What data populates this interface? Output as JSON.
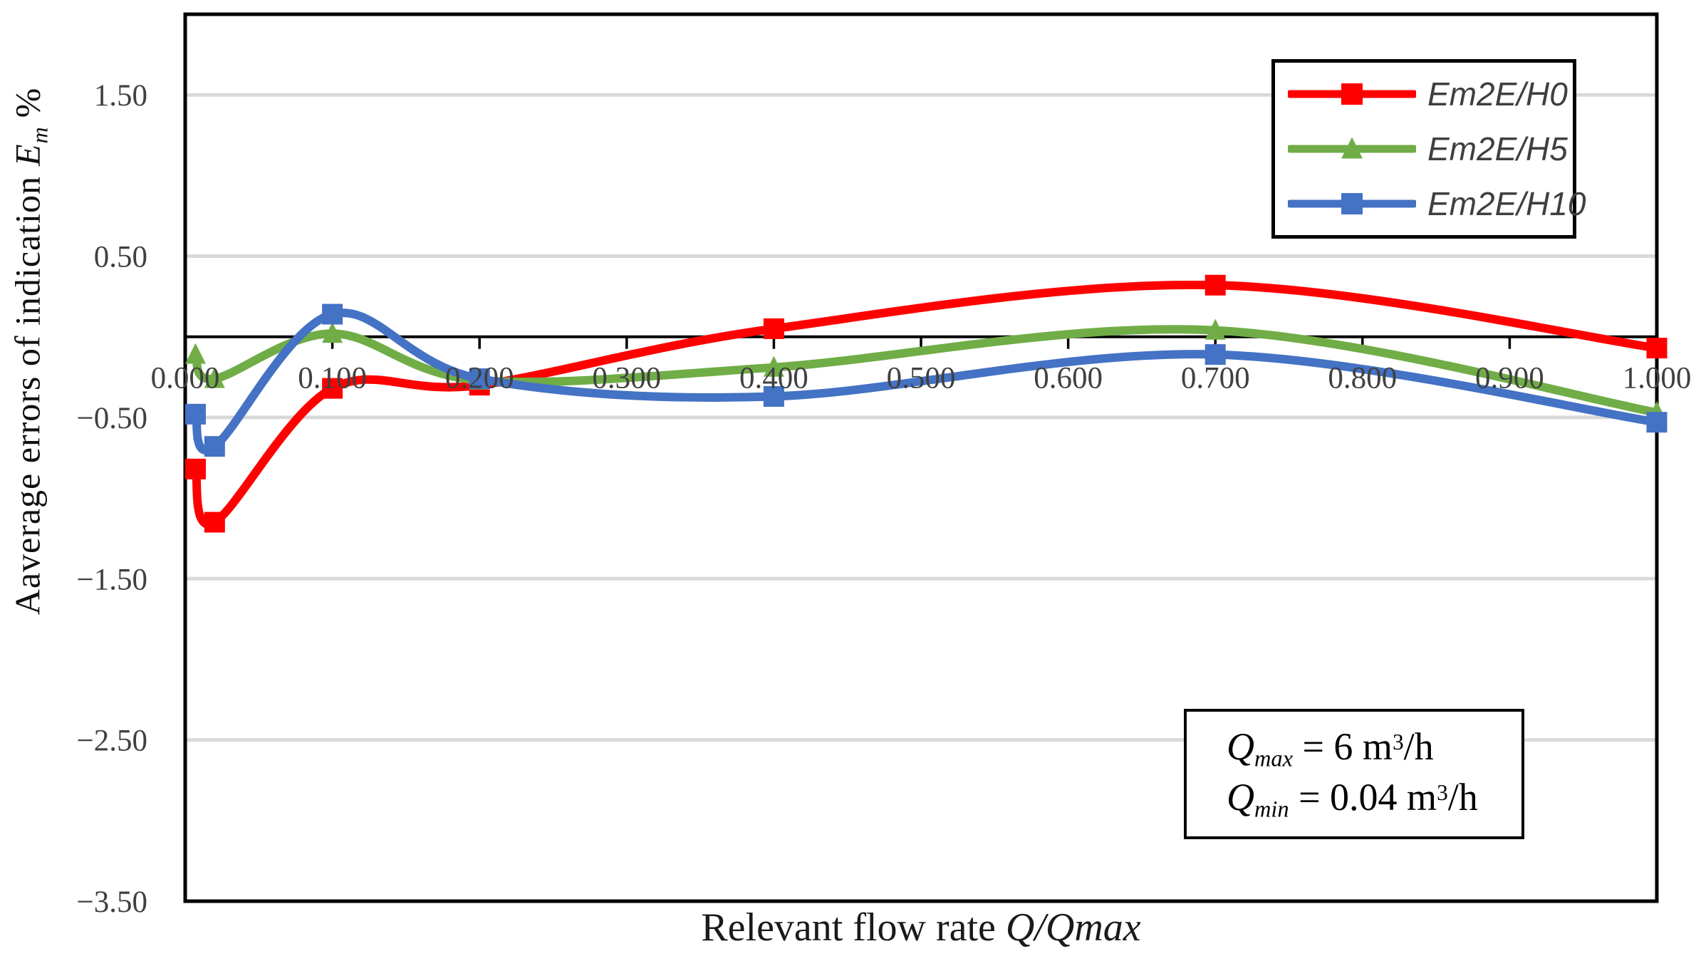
{
  "chart_data": {
    "type": "line",
    "title": "",
    "smooth": true,
    "grid": "horizontal",
    "legend_position": "top-right",
    "xlabel_plain": "Relevant flow rate ",
    "xlabel_italic": "Q/Qmax",
    "ylabel_plain": "Aaverage errors of indication",
    "ylabel_symbol": "E",
    "ylabel_symbol_sub": "m",
    "ylabel_suffix": "%",
    "x": [
      0.007,
      0.02,
      0.1,
      0.2,
      0.4,
      0.7,
      1.0
    ],
    "series": [
      {
        "name": "Em2E/H0",
        "color": "#FF0000",
        "marker": "square",
        "values": [
          -0.82,
          -1.15,
          -0.32,
          -0.3,
          0.05,
          0.32,
          -0.07
        ]
      },
      {
        "name": "Em2E/H5",
        "color": "#70AD47",
        "marker": "triangle",
        "values": [
          -0.11,
          -0.26,
          0.02,
          -0.27,
          -0.19,
          0.04,
          -0.47
        ]
      },
      {
        "name": "Em2E/H10",
        "color": "#4472C4",
        "marker": "square",
        "values": [
          -0.48,
          -0.68,
          0.14,
          -0.26,
          -0.37,
          -0.11,
          -0.53
        ]
      }
    ],
    "xlim": [
      0,
      1
    ],
    "ylim": [
      -3.5,
      2.0
    ],
    "x_ticks": {
      "values": [
        0,
        0.1,
        0.2,
        0.3,
        0.4,
        0.5,
        0.6,
        0.7,
        0.8,
        0.9,
        1.0
      ],
      "labels": [
        "0.000",
        "0.100",
        "0.200",
        "0.300",
        "0.400",
        "0.500",
        "0.600",
        "0.700",
        "0.800",
        "0.900",
        "1.000"
      ]
    },
    "y_ticks": {
      "values": [
        1.5,
        0.5,
        -0.5,
        -1.5,
        -2.5,
        -3.5
      ],
      "labels": [
        "1.50",
        "0.50",
        "−0.50",
        "−1.50",
        "−2.50",
        "−3.50"
      ]
    },
    "annotations": [
      "Qmax = 6 m³/h",
      "Qmin = 0.04 m³/h"
    ]
  },
  "legend": {
    "items": [
      {
        "label": "Em2E/H0",
        "color": "#FF0000",
        "marker": "square"
      },
      {
        "label": "Em2E/H5",
        "color": "#70AD47",
        "marker": "triangle"
      },
      {
        "label": "Em2E/H10",
        "color": "#4472C4",
        "marker": "square"
      }
    ]
  },
  "annotation": {
    "line1": {
      "symbol": "Q",
      "sub": "max",
      "eq": " = 6 m",
      "sup": "3",
      "unit": "/h"
    },
    "line2": {
      "symbol": "Q",
      "sub": "min",
      "eq": " = 0.04 m",
      "sup": "3",
      "unit": "/h"
    }
  },
  "colors": {
    "background": "#FFFFFF",
    "grid": "#D9D9D9",
    "axis_line": "#000000",
    "plot_border": "#000000",
    "tick_text": "#404040",
    "title_text": "#1A1A1A",
    "legend_text": "#3F3F3F"
  }
}
